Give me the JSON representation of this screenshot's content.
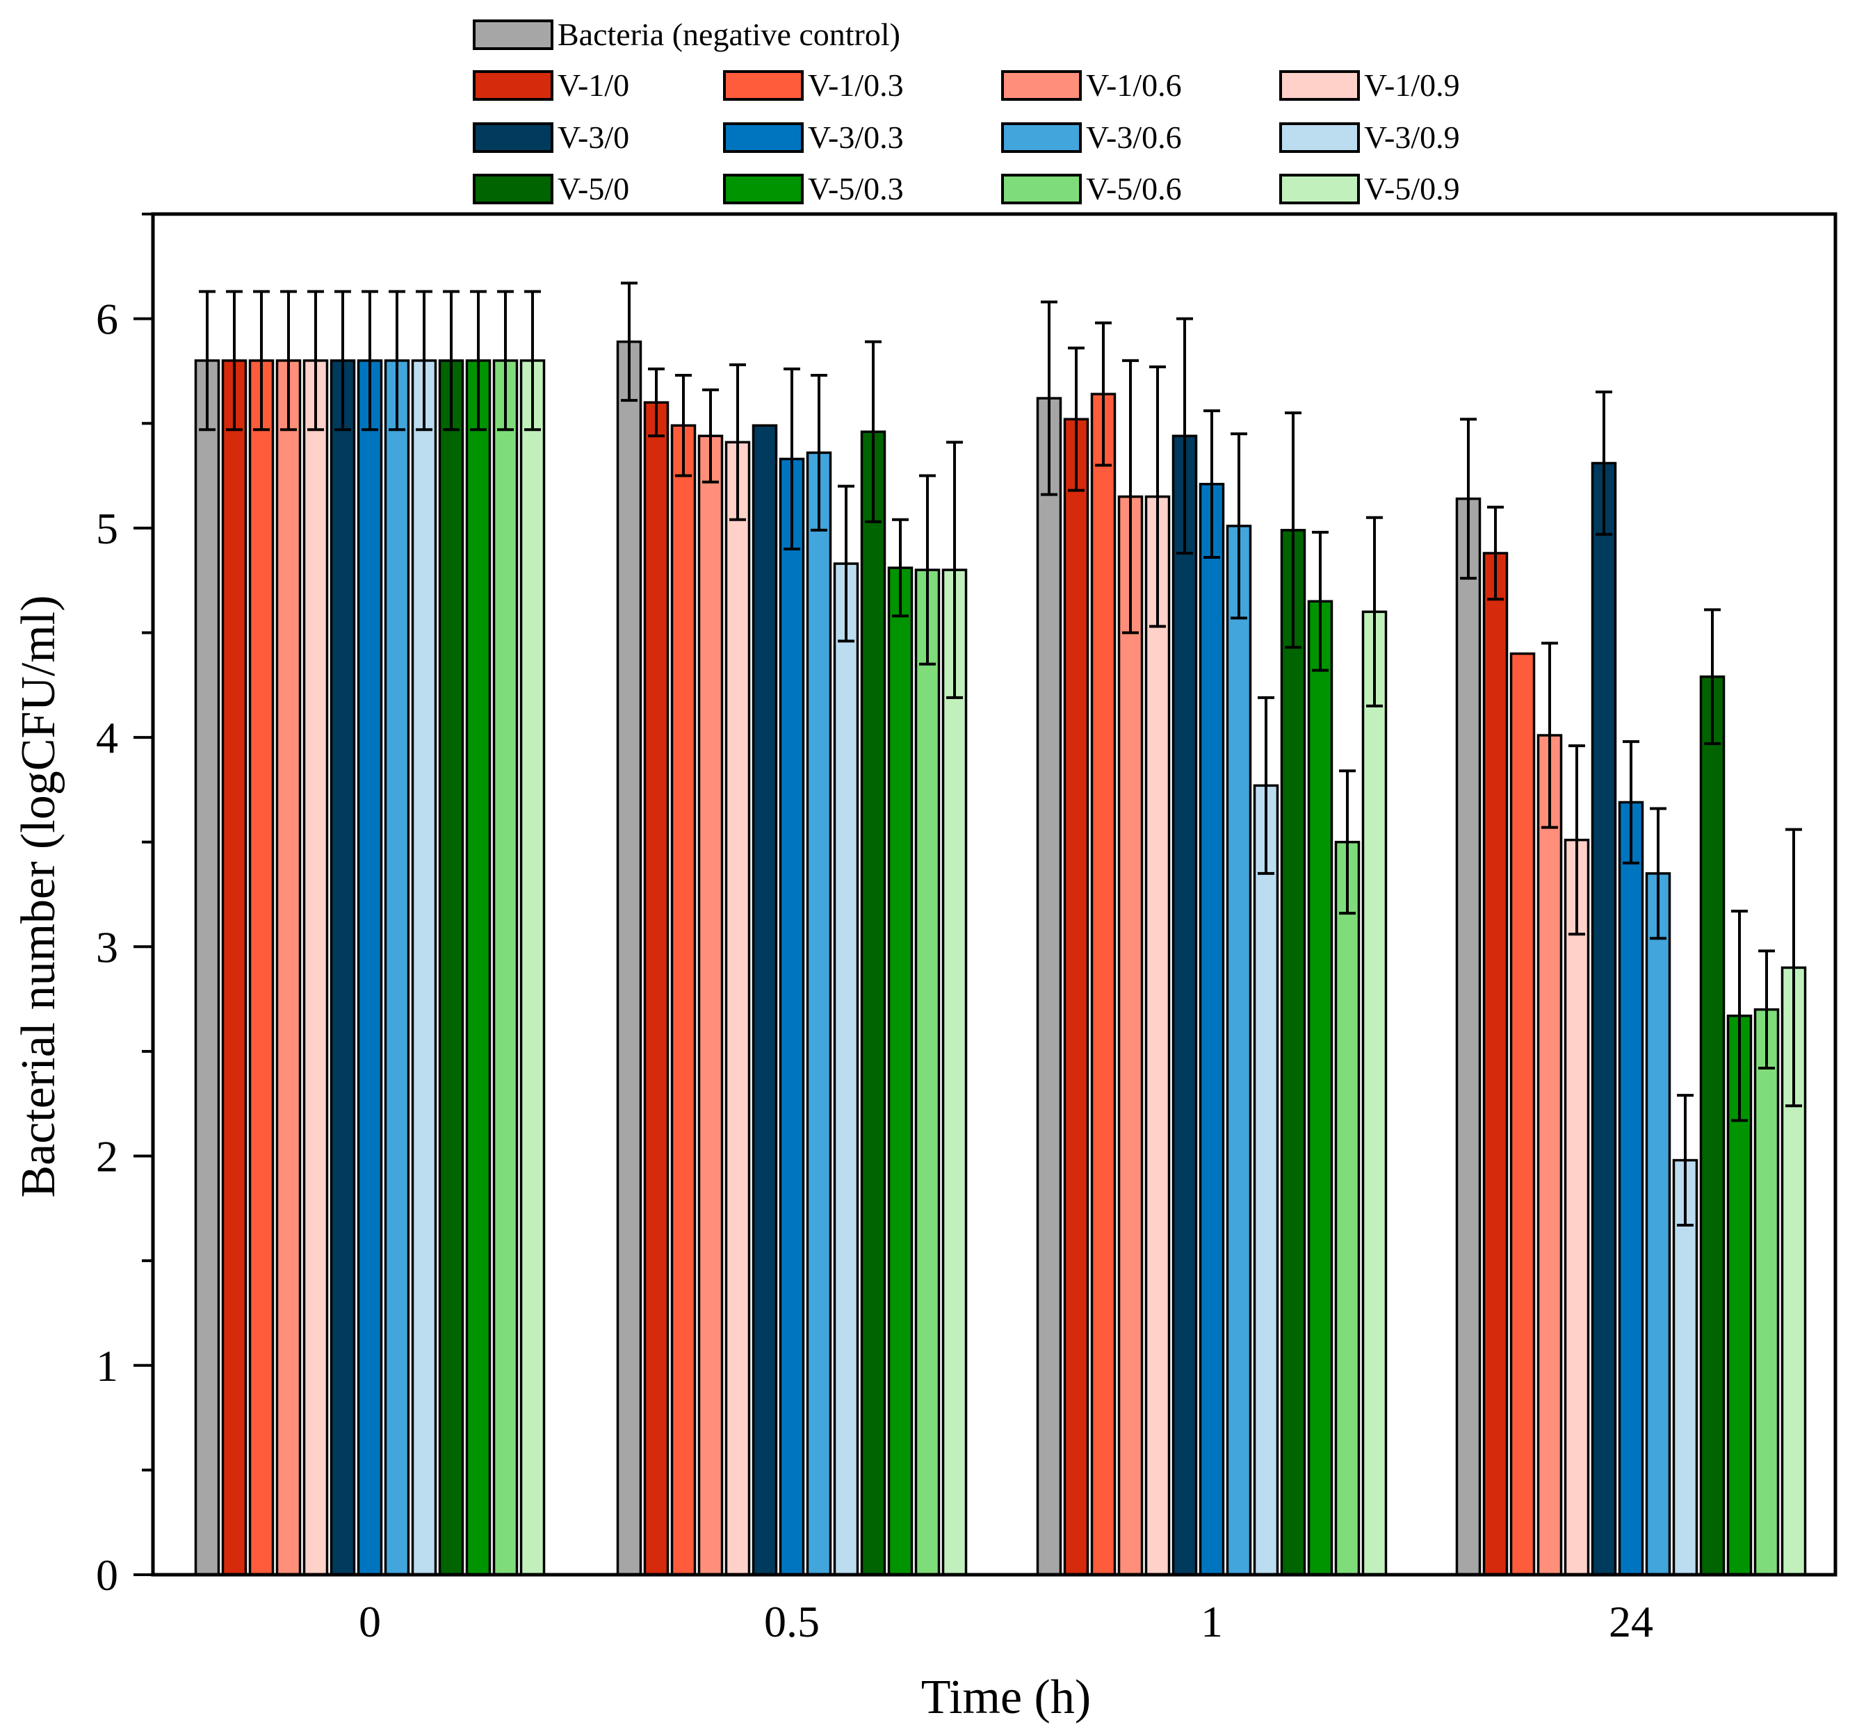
{
  "chart_data": {
    "type": "bar",
    "xlabel": "Time (h)",
    "ylabel": "Bacterial number (logCFU/ml)",
    "ylim": [
      0,
      6.5
    ],
    "yticks": [
      0,
      1,
      2,
      3,
      4,
      5,
      6
    ],
    "categories": [
      "0",
      "0.5",
      "1",
      "24"
    ],
    "legend_position": "top",
    "series": [
      {
        "name": "Bacteria (negative control)",
        "color": "#a6a6a6",
        "values": [
          5.8,
          5.89,
          5.62,
          5.14
        ],
        "errors": [
          0.33,
          0.28,
          0.46,
          0.38
        ]
      },
      {
        "name": "V-1/0",
        "color": "#d62a0c",
        "values": [
          5.8,
          5.6,
          5.52,
          4.88
        ],
        "errors": [
          0.33,
          0.16,
          0.34,
          0.22
        ]
      },
      {
        "name": "V-1/0.3",
        "color": "#ff5c3c",
        "values": [
          5.8,
          5.49,
          5.64,
          4.4
        ],
        "errors": [
          0.33,
          0.24,
          0.34,
          0.0
        ]
      },
      {
        "name": "V-1/0.6",
        "color": "#ff8f7a",
        "values": [
          5.8,
          5.44,
          5.15,
          4.01
        ],
        "errors": [
          0.33,
          0.22,
          0.65,
          0.44
        ]
      },
      {
        "name": "V-1/0.9",
        "color": "#ffd1c8",
        "values": [
          5.8,
          5.41,
          5.15,
          3.51
        ],
        "errors": [
          0.33,
          0.37,
          0.62,
          0.45
        ]
      },
      {
        "name": "V-3/0",
        "color": "#003a5c",
        "values": [
          5.8,
          5.49,
          5.44,
          5.31
        ],
        "errors": [
          0.33,
          0.0,
          0.56,
          0.34
        ]
      },
      {
        "name": "V-3/0.3",
        "color": "#0075bf",
        "values": [
          5.8,
          5.33,
          5.21,
          3.69
        ],
        "errors": [
          0.33,
          0.43,
          0.35,
          0.29
        ]
      },
      {
        "name": "V-3/0.6",
        "color": "#42a5dc",
        "values": [
          5.8,
          5.36,
          5.01,
          3.35
        ],
        "errors": [
          0.33,
          0.37,
          0.44,
          0.31
        ]
      },
      {
        "name": "V-3/0.9",
        "color": "#bcdcf0",
        "values": [
          5.8,
          4.83,
          3.77,
          1.98
        ],
        "errors": [
          0.33,
          0.37,
          0.42,
          0.31
        ]
      },
      {
        "name": "V-5/0",
        "color": "#006400",
        "values": [
          5.8,
          5.46,
          4.99,
          4.29
        ],
        "errors": [
          0.33,
          0.43,
          0.56,
          0.32
        ]
      },
      {
        "name": "V-5/0.3",
        "color": "#009400",
        "values": [
          5.8,
          4.81,
          4.65,
          2.67
        ],
        "errors": [
          0.33,
          0.23,
          0.33,
          0.5
        ]
      },
      {
        "name": "V-5/0.6",
        "color": "#7fdc7a",
        "values": [
          5.8,
          4.8,
          3.5,
          2.7
        ],
        "errors": [
          0.33,
          0.45,
          0.34,
          0.28
        ]
      },
      {
        "name": "V-5/0.9",
        "color": "#c1f0bc",
        "values": [
          5.8,
          4.8,
          4.6,
          2.9
        ],
        "errors": [
          0.33,
          0.61,
          0.45,
          0.66
        ]
      }
    ]
  }
}
